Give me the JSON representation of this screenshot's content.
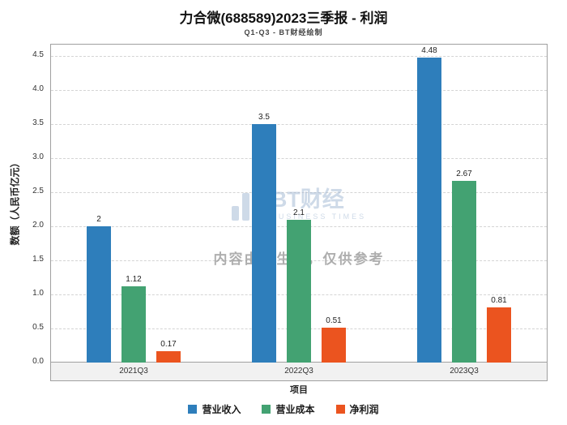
{
  "chart_data": {
    "type": "bar",
    "title": "力合微(688589)2023三季报 - 利润",
    "subtitle": "Q1-Q3 - BT财经绘制",
    "categories": [
      "2021Q3",
      "2022Q3",
      "2023Q3"
    ],
    "series": [
      {
        "id": "revenue",
        "name": "营业收入",
        "color": "#2E7EBB",
        "values": [
          2,
          3.5,
          4.48
        ],
        "labels": [
          "2",
          "3.5",
          "4.48"
        ]
      },
      {
        "id": "cost",
        "name": "营业成本",
        "color": "#43A272",
        "values": [
          1.12,
          2.1,
          2.67
        ],
        "labels": [
          "1.12",
          "2.1",
          "2.67"
        ]
      },
      {
        "id": "net-profit",
        "name": "净利润",
        "color": "#EB541F",
        "values": [
          0.17,
          0.51,
          0.81
        ],
        "labels": [
          "0.17",
          "0.51",
          "0.81"
        ]
      }
    ],
    "xlabel": "项目",
    "ylabel": "数额（人民币亿元）",
    "ylim": [
      0,
      4.5
    ],
    "ytick_step": 0.5,
    "grid": "dashed-horizontal",
    "legend_position": "bottom"
  },
  "watermark": {
    "logo_text": "BT财经",
    "logo_sub": "BUSINESS TIMES",
    "disclaimer": "内容由AI生成，仅供参考"
  }
}
